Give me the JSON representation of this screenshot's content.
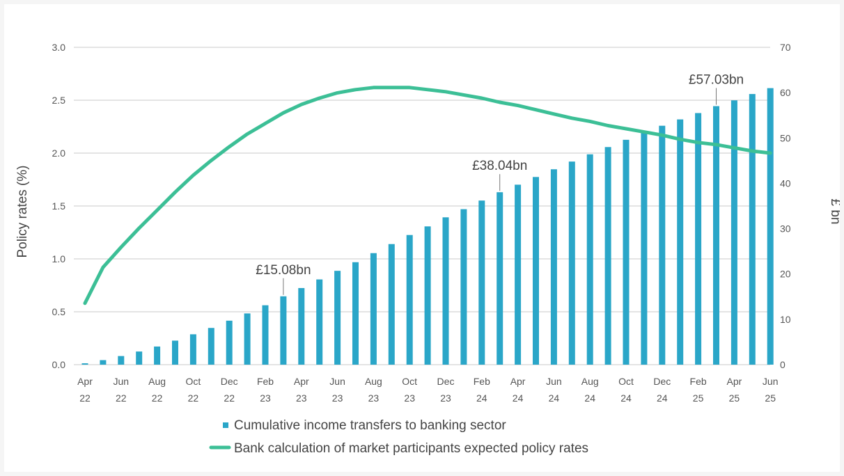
{
  "chart_data": {
    "type": "bar+line",
    "colors": {
      "bars": "#2aa6c8",
      "line": "#3cbf96",
      "grid": "#c8c8c8"
    },
    "left_axis": {
      "label": "Policy rates (%)",
      "ylim": [
        0,
        3.0
      ],
      "ticks": [
        "0.0",
        "0.5",
        "1.0",
        "1.5",
        "2.0",
        "2.5",
        "3.0"
      ],
      "tick_values": [
        0,
        0.5,
        1.0,
        1.5,
        2.0,
        2.5,
        3.0
      ]
    },
    "right_axis": {
      "label": "£ bn",
      "ylim": [
        0,
        70
      ],
      "ticks": [
        "0",
        "10",
        "20",
        "30",
        "40",
        "50",
        "60",
        "70"
      ],
      "tick_values": [
        0,
        10,
        20,
        30,
        40,
        50,
        60,
        70
      ]
    },
    "x_ticks": [
      {
        "month": "Apr",
        "year": "22"
      },
      {
        "month": "Jun",
        "year": "22"
      },
      {
        "month": "Aug",
        "year": "22"
      },
      {
        "month": "Oct",
        "year": "22"
      },
      {
        "month": "Dec",
        "year": "22"
      },
      {
        "month": "Feb",
        "year": "23"
      },
      {
        "month": "Apr",
        "year": "23"
      },
      {
        "month": "Jun",
        "year": "23"
      },
      {
        "month": "Aug",
        "year": "23"
      },
      {
        "month": "Oct",
        "year": "23"
      },
      {
        "month": "Dec",
        "year": "23"
      },
      {
        "month": "Feb",
        "year": "24"
      },
      {
        "month": "Apr",
        "year": "24"
      },
      {
        "month": "Jun",
        "year": "24"
      },
      {
        "month": "Aug",
        "year": "24"
      },
      {
        "month": "Oct",
        "year": "24"
      },
      {
        "month": "Dec",
        "year": "24"
      },
      {
        "month": "Feb",
        "year": "25"
      },
      {
        "month": "Apr",
        "year": "25"
      },
      {
        "month": "Jun",
        "year": "25"
      }
    ],
    "months": [
      "Apr 22",
      "May 22",
      "Jun 22",
      "Jul 22",
      "Aug 22",
      "Sep 22",
      "Oct 22",
      "Nov 22",
      "Dec 22",
      "Jan 23",
      "Feb 23",
      "Mar 23",
      "Apr 23",
      "May 23",
      "Jun 23",
      "Jul 23",
      "Aug 23",
      "Sep 23",
      "Oct 23",
      "Nov 23",
      "Dec 23",
      "Jan 24",
      "Feb 24",
      "Mar 24",
      "Apr 24",
      "May 24",
      "Jun 24",
      "Jul 24",
      "Aug 24",
      "Sep 24",
      "Oct 24",
      "Nov 24",
      "Dec 24",
      "Jan 25",
      "Feb 25",
      "Mar 25",
      "Apr 25",
      "May 25",
      "Jun 25"
    ],
    "series": [
      {
        "name": "Cumulative income transfers to banking sector",
        "type": "bar",
        "axis": "right",
        "values": [
          0.3,
          1.0,
          1.9,
          2.9,
          4.0,
          5.3,
          6.7,
          8.1,
          9.7,
          11.3,
          13.1,
          15.08,
          16.9,
          18.8,
          20.7,
          22.6,
          24.6,
          26.6,
          28.6,
          30.5,
          32.5,
          34.3,
          36.2,
          38.04,
          39.7,
          41.4,
          43.1,
          44.8,
          46.4,
          48.0,
          49.6,
          51.2,
          52.7,
          54.1,
          55.5,
          57.03,
          58.3,
          59.7,
          61.0
        ]
      },
      {
        "name": "Bank calculation of market participants expected policy rates",
        "type": "line",
        "axis": "left",
        "values": [
          0.58,
          0.92,
          1.11,
          1.29,
          1.46,
          1.63,
          1.79,
          1.93,
          2.06,
          2.18,
          2.28,
          2.38,
          2.46,
          2.52,
          2.57,
          2.6,
          2.62,
          2.62,
          2.62,
          2.6,
          2.58,
          2.55,
          2.52,
          2.48,
          2.45,
          2.41,
          2.37,
          2.33,
          2.3,
          2.26,
          2.23,
          2.2,
          2.17,
          2.13,
          2.1,
          2.08,
          2.05,
          2.02,
          2.0
        ]
      }
    ],
    "annotations": [
      {
        "text": "£15.08bn",
        "index": 11
      },
      {
        "text": "£38.04bn",
        "index": 23
      },
      {
        "text": "£57.03bn",
        "index": 35
      }
    ],
    "legend": {
      "placement": "bottom",
      "items": [
        {
          "label": "Cumulative income transfers to banking sector",
          "marker": "square"
        },
        {
          "label": "Bank calculation of market participants expected policy rates",
          "marker": "line"
        }
      ]
    }
  }
}
